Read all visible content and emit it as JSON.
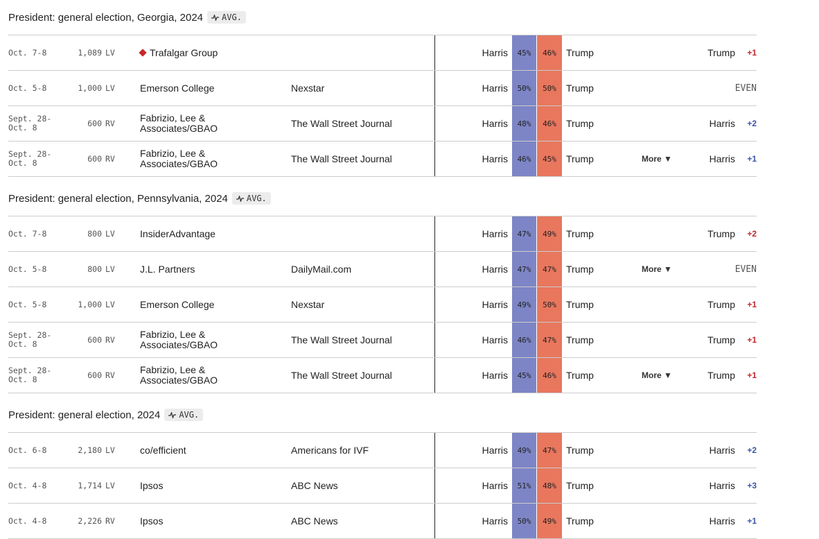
{
  "sections": [
    {
      "title": "President: general election, Georgia, 2024",
      "avg": "AVG.",
      "rows": [
        {
          "dates": "Oct. 7-8",
          "sample": "1,089",
          "population": "LV",
          "pollster": "Trafalgar Group",
          "cand1": "Harris",
          "pct1": "45%",
          "pct2": "46%",
          "cand2": "Trump",
          "leader": "Trump",
          "margin": "+1"
        },
        {
          "dates": "Oct. 5-8",
          "sample": "1,000",
          "population": "LV",
          "pollster": "Emerson College",
          "sponsor": "Nexstar",
          "cand1": "Harris",
          "pct1": "50%",
          "pct2": "50%",
          "cand2": "Trump",
          "margin": "EVEN"
        },
        {
          "dates": "Sept. 28-\nOct. 8",
          "sample": "600",
          "population": "RV",
          "pollster": "Fabrizio, Lee &\nAssociates/GBAO",
          "sponsor": "The Wall Street Journal",
          "cand1": "Harris",
          "pct1": "48%",
          "pct2": "46%",
          "cand2": "Trump",
          "leader": "Harris",
          "margin": "+2"
        },
        {
          "dates": "Sept. 28-\nOct. 8",
          "sample": "600",
          "population": "RV",
          "pollster": "Fabrizio, Lee &\nAssociates/GBAO",
          "sponsor": "The Wall Street Journal",
          "cand1": "Harris",
          "pct1": "46%",
          "pct2": "45%",
          "cand2": "Trump",
          "more": "More ▼",
          "leader": "Harris",
          "margin": "+1"
        }
      ]
    },
    {
      "title": "President: general election, Pennsylvania, 2024",
      "avg": "AVG.",
      "rows": [
        {
          "dates": "Oct. 7-8",
          "sample": "800",
          "population": "LV",
          "pollster": "InsiderAdvantage",
          "cand1": "Harris",
          "pct1": "47%",
          "pct2": "49%",
          "cand2": "Trump",
          "leader": "Trump",
          "margin": "+2"
        },
        {
          "dates": "Oct. 5-8",
          "sample": "800",
          "population": "LV",
          "pollster": "J.L. Partners",
          "sponsor": "DailyMail.com",
          "cand1": "Harris",
          "pct1": "47%",
          "pct2": "47%",
          "cand2": "Trump",
          "more": "More ▼",
          "margin": "EVEN"
        },
        {
          "dates": "Oct. 5-8",
          "sample": "1,000",
          "population": "LV",
          "pollster": "Emerson College",
          "sponsor": "Nexstar",
          "cand1": "Harris",
          "pct1": "49%",
          "pct2": "50%",
          "cand2": "Trump",
          "leader": "Trump",
          "margin": "+1"
        },
        {
          "dates": "Sept. 28-\nOct. 8",
          "sample": "600",
          "population": "RV",
          "pollster": "Fabrizio, Lee &\nAssociates/GBAO",
          "sponsor": "The Wall Street Journal",
          "cand1": "Harris",
          "pct1": "46%",
          "pct2": "47%",
          "cand2": "Trump",
          "leader": "Trump",
          "margin": "+1"
        },
        {
          "dates": "Sept. 28-\nOct. 8",
          "sample": "600",
          "population": "RV",
          "pollster": "Fabrizio, Lee &\nAssociates/GBAO",
          "sponsor": "The Wall Street Journal",
          "cand1": "Harris",
          "pct1": "45%",
          "pct2": "46%",
          "cand2": "Trump",
          "more": "More ▼",
          "leader": "Trump",
          "margin": "+1"
        }
      ]
    },
    {
      "title": "President: general election, 2024",
      "avg": "AVG.",
      "rows": [
        {
          "dates": "Oct. 6-8",
          "sample": "2,180",
          "population": "LV",
          "pollster": "co/efficient",
          "sponsor": "Americans for IVF",
          "cand1": "Harris",
          "pct1": "49%",
          "pct2": "47%",
          "cand2": "Trump",
          "leader": "Harris",
          "margin": "+2"
        },
        {
          "dates": "Oct. 4-8",
          "sample": "1,714",
          "population": "LV",
          "pollster": "Ipsos",
          "sponsor": "ABC News",
          "cand1": "Harris",
          "pct1": "51%",
          "pct2": "48%",
          "cand2": "Trump",
          "leader": "Harris",
          "margin": "+3"
        },
        {
          "dates": "Oct. 4-8",
          "sample": "2,226",
          "population": "RV",
          "pollster": "Ipsos",
          "sponsor": "ABC News",
          "cand1": "Harris",
          "pct1": "50%",
          "pct2": "49%",
          "cand2": "Trump",
          "leader": "Harris",
          "margin": "+1"
        }
      ]
    }
  ]
}
